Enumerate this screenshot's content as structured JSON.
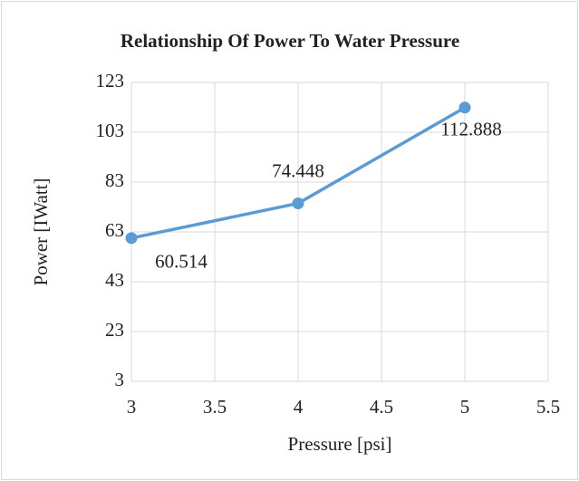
{
  "chart_data": {
    "type": "line",
    "title": "Relationship Of Power To Water Pressure",
    "x_label": "Pressure [psi]",
    "y_label": "Power [IWatt]",
    "x": [
      3,
      4,
      5
    ],
    "series": [
      {
        "name": "Power",
        "color": "#5b9bd5",
        "values": [
          60.514,
          74.448,
          112.888
        ]
      }
    ],
    "xlim": [
      3,
      5.5
    ],
    "xticks": [
      3,
      3.5,
      4,
      4.5,
      5,
      5.5
    ],
    "ylim": [
      3,
      123
    ],
    "yticks": [
      3,
      23,
      43,
      63,
      83,
      103,
      123
    ],
    "grid": true,
    "data_labels": true
  }
}
